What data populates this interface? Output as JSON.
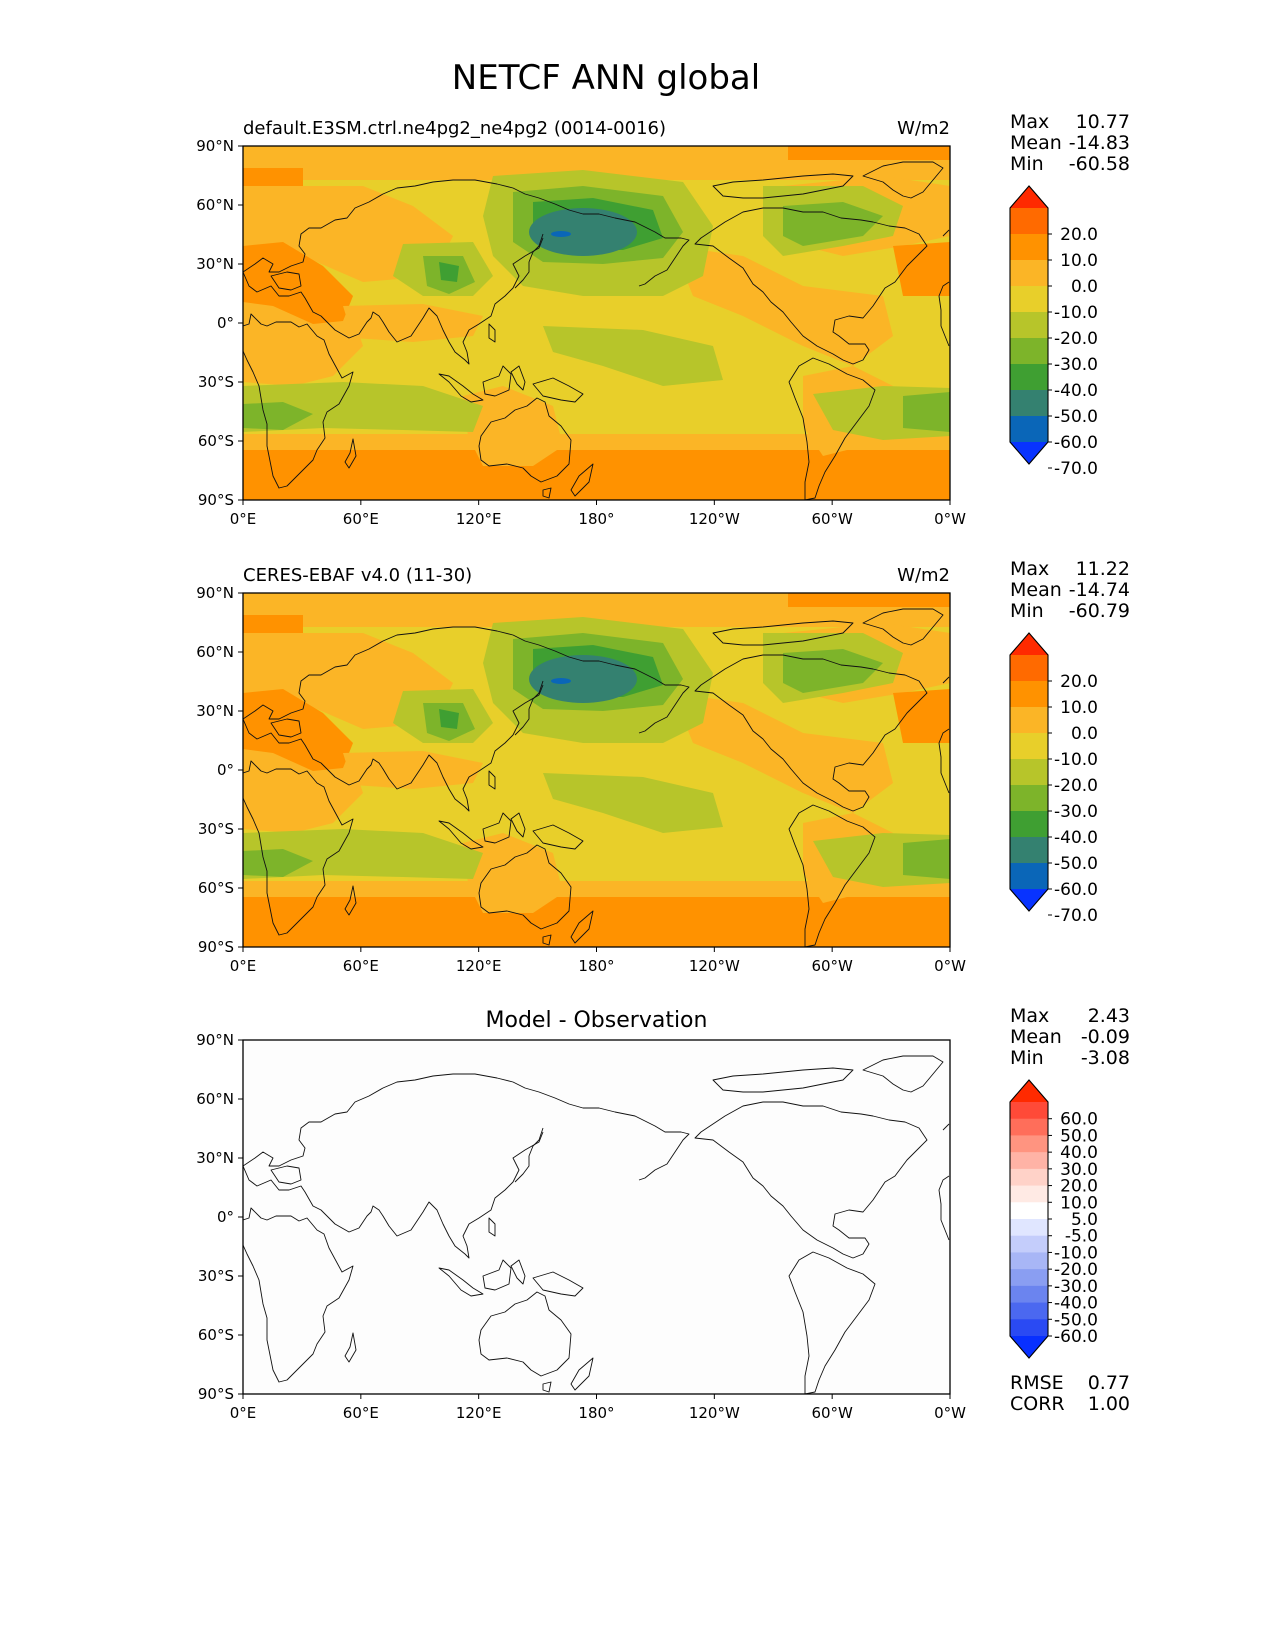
{
  "figure": {
    "title": "NETCF ANN global"
  },
  "panels": [
    {
      "id": "test",
      "left_title": "default.E3SM.ctrl.ne4pg2_ne4pg2 (0014-0016)",
      "center_title": "",
      "units": "W/m2",
      "stats": [
        [
          "Max",
          "10.77"
        ],
        [
          "Mean",
          "-14.83"
        ],
        [
          "Min",
          "-60.58"
        ]
      ],
      "extra_stats": []
    },
    {
      "id": "ref",
      "left_title": "CERES-EBAF v4.0 (11-30)",
      "center_title": "",
      "units": "W/m2",
      "stats": [
        [
          "Max",
          "11.22"
        ],
        [
          "Mean",
          "-14.74"
        ],
        [
          "Min",
          "-60.79"
        ]
      ],
      "extra_stats": []
    },
    {
      "id": "diff",
      "left_title": "",
      "center_title": "Model - Observation",
      "units": "",
      "stats": [
        [
          "Max",
          "2.43"
        ],
        [
          "Mean",
          "-0.09"
        ],
        [
          "Min",
          "-3.08"
        ]
      ],
      "extra_stats": [
        [
          "RMSE",
          "0.77"
        ],
        [
          "CORR",
          "1.00"
        ]
      ]
    }
  ],
  "chart_data": [
    {
      "type": "heatmap",
      "map_projection": "PlateCarree, central longitude 180",
      "variable": "NETCF",
      "season": "ANN",
      "units": "W/m2",
      "xticks": [
        "0°E",
        "60°E",
        "120°E",
        "180°",
        "120°W",
        "60°W",
        "0°W"
      ],
      "yticks": [
        "90°N",
        "60°N",
        "30°N",
        "0°",
        "30°S",
        "60°S",
        "90°S"
      ],
      "colorbar": {
        "labels": [
          "20.0",
          "10.0",
          "0.0",
          "-10.0",
          "-20.0",
          "-30.0",
          "-40.0",
          "-50.0",
          "-60.0",
          "-70.0"
        ],
        "colors": [
          "#ff2a00",
          "#ff6a00",
          "#ff9200",
          "#fbb526",
          "#e8cf2a",
          "#b7c52a",
          "#7db42a",
          "#3f9f32",
          "#348170",
          "#0a66b8",
          "#0833ff"
        ],
        "extend": "both"
      },
      "stats": {
        "max": 10.77,
        "mean": -14.83,
        "min": -60.58
      },
      "field_regions": [
        {
          "name": "North Pacific minimum",
          "lon": [
            140,
            205
          ],
          "lat": [
            38,
            58
          ],
          "level": "-60.0"
        },
        {
          "name": "North Pacific",
          "lon": [
            115,
            240
          ],
          "lat": [
            25,
            65
          ],
          "level": "-40.0"
        },
        {
          "name": "Bay of Bengal",
          "lon": [
            88,
            100
          ],
          "lat": [
            10,
            25
          ],
          "level": "-40.0"
        },
        {
          "name": "Southern Ocean",
          "lon": [
            0,
            360
          ],
          "lat": [
            -55,
            -40
          ],
          "level": "-30.0"
        },
        {
          "name": "Antarctica",
          "lon": [
            0,
            360
          ],
          "lat": [
            -90,
            -65
          ],
          "level": "0.0"
        },
        {
          "name": "Sahara / Arabia",
          "lon": [
            0,
            60
          ],
          "lat": [
            10,
            35
          ],
          "level": "0.0"
        }
      ]
    },
    {
      "type": "heatmap",
      "map_projection": "PlateCarree, central longitude 180",
      "variable": "NETCF",
      "season": "ANN",
      "units": "W/m2",
      "xticks": [
        "0°E",
        "60°E",
        "120°E",
        "180°",
        "120°W",
        "60°W",
        "0°W"
      ],
      "yticks": [
        "90°N",
        "60°N",
        "30°N",
        "0°",
        "30°S",
        "60°S",
        "90°S"
      ],
      "colorbar": {
        "labels": [
          "20.0",
          "10.0",
          "0.0",
          "-10.0",
          "-20.0",
          "-30.0",
          "-40.0",
          "-50.0",
          "-60.0",
          "-70.0"
        ],
        "colors": [
          "#ff2a00",
          "#ff6a00",
          "#ff9200",
          "#fbb526",
          "#e8cf2a",
          "#b7c52a",
          "#7db42a",
          "#3f9f32",
          "#348170",
          "#0a66b8",
          "#0833ff"
        ],
        "extend": "both"
      },
      "stats": {
        "max": 11.22,
        "mean": -14.74,
        "min": -60.79
      },
      "field_regions": [
        {
          "name": "North Pacific minimum",
          "lon": [
            140,
            205
          ],
          "lat": [
            38,
            58
          ],
          "level": "-60.0"
        },
        {
          "name": "North Pacific",
          "lon": [
            115,
            240
          ],
          "lat": [
            25,
            65
          ],
          "level": "-40.0"
        },
        {
          "name": "Bay of Bengal",
          "lon": [
            88,
            100
          ],
          "lat": [
            10,
            25
          ],
          "level": "-40.0"
        },
        {
          "name": "Southern Ocean",
          "lon": [
            0,
            360
          ],
          "lat": [
            -55,
            -40
          ],
          "level": "-30.0"
        },
        {
          "name": "Antarctica",
          "lon": [
            0,
            360
          ],
          "lat": [
            -90,
            -65
          ],
          "level": "0.0"
        },
        {
          "name": "Sahara / Arabia",
          "lon": [
            0,
            60
          ],
          "lat": [
            10,
            35
          ],
          "level": "0.0"
        }
      ]
    },
    {
      "type": "heatmap",
      "map_projection": "PlateCarree, central longitude 180",
      "variable": "NETCF",
      "season": "ANN",
      "units": "W/m2",
      "xticks": [
        "0°E",
        "60°E",
        "120°E",
        "180°",
        "120°W",
        "60°W",
        "0°W"
      ],
      "yticks": [
        "90°N",
        "60°N",
        "30°N",
        "0°",
        "30°S",
        "60°S",
        "90°S"
      ],
      "colorbar": {
        "labels": [
          "60.0",
          "50.0",
          "40.0",
          "30.0",
          "20.0",
          "10.0",
          "5.0",
          "-5.0",
          "-10.0",
          "-20.0",
          "-30.0",
          "-40.0",
          "-50.0",
          "-60.0"
        ],
        "colors": [
          "#ff2a00",
          "#ff4a38",
          "#ff6e5a",
          "#ff9480",
          "#ffb3a6",
          "#ffd2c8",
          "#ffeae4",
          "#ffffff",
          "#e0e6ff",
          "#c4cdfb",
          "#a8b6f6",
          "#8a9ef2",
          "#6b84ef",
          "#4b68f0",
          "#2a4af3",
          "#0830ff"
        ],
        "extend": "both"
      },
      "stats": {
        "max": 2.43,
        "mean": -0.09,
        "min": -3.08,
        "rmse": 0.77,
        "corr": 1.0
      },
      "field_regions": [
        {
          "name": "Globe",
          "lon": [
            0,
            360
          ],
          "lat": [
            -90,
            90
          ],
          "level": "-5.0 to 5.0"
        }
      ]
    }
  ]
}
